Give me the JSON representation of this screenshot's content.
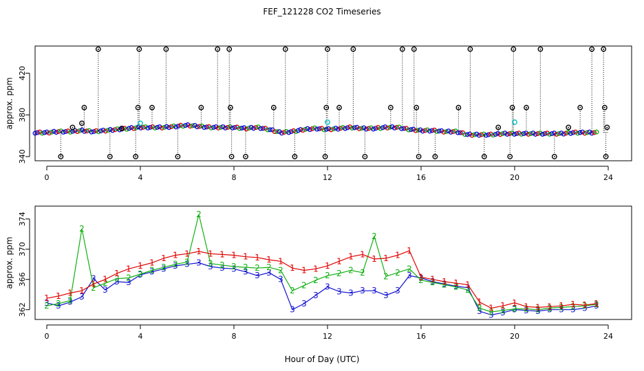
{
  "figure_title": "FEF_121228  CO2 Timeseries",
  "shared_xlabel": "Hour of Day (UTC)",
  "colors": {
    "black": "#000000",
    "red": "#e00000",
    "green": "#10b010",
    "blue": "#1010d0",
    "cyan": "#00c0c0"
  },
  "chart_data": [
    {
      "type": "scatter",
      "title": "",
      "xlabel": "",
      "ylabel": "approx. ppm",
      "xlim": [
        -0.5,
        25
      ],
      "ylim": [
        336,
        446
      ],
      "xticks": [
        0,
        4,
        8,
        12,
        16,
        20,
        24
      ],
      "yticks": [
        340,
        380,
        420
      ],
      "background_series": {
        "name": "all points",
        "x": [
          0,
          0.5,
          1,
          1.5,
          2,
          2.5,
          3,
          3.5,
          4,
          4.5,
          5,
          5.5,
          6,
          6.5,
          7,
          7.5,
          8,
          8.5,
          9,
          9.5,
          10,
          10.5,
          11,
          11.5,
          12,
          12.5,
          13,
          13.5,
          14,
          14.5,
          15,
          15.5,
          16,
          16.5,
          17,
          17.5,
          18,
          18.5,
          19,
          19.5,
          20,
          20.5,
          21,
          21.5,
          22,
          22.5,
          23,
          23.5
        ],
        "y": [
          363,
          363,
          364,
          364,
          365,
          364,
          365,
          366,
          367,
          368,
          368,
          368,
          369,
          370,
          369,
          368,
          368,
          368,
          367,
          368,
          366,
          363,
          364,
          366,
          367,
          366,
          367,
          368,
          367,
          367,
          368,
          368,
          366,
          365,
          365,
          364,
          364,
          361,
          361,
          361,
          362,
          362,
          362,
          362,
          362,
          362,
          363,
          363
        ]
      },
      "spikes": [
        {
          "x": 0.6,
          "y": 340
        },
        {
          "x": 1.1,
          "y": 368
        },
        {
          "x": 1.5,
          "y": 372
        },
        {
          "x": 1.6,
          "y": 387
        },
        {
          "x": 2.2,
          "y": 443
        },
        {
          "x": 2.7,
          "y": 340
        },
        {
          "x": 3.2,
          "y": 367
        },
        {
          "x": 3.8,
          "y": 340
        },
        {
          "x": 3.9,
          "y": 387
        },
        {
          "x": 3.95,
          "y": 443
        },
        {
          "x": 4.5,
          "y": 387
        },
        {
          "x": 5.1,
          "y": 443
        },
        {
          "x": 5.6,
          "y": 340
        },
        {
          "x": 6.6,
          "y": 387
        },
        {
          "x": 7.3,
          "y": 443
        },
        {
          "x": 7.8,
          "y": 443
        },
        {
          "x": 7.85,
          "y": 387
        },
        {
          "x": 7.9,
          "y": 340
        },
        {
          "x": 8.5,
          "y": 340
        },
        {
          "x": 9.7,
          "y": 387
        },
        {
          "x": 10.2,
          "y": 443
        },
        {
          "x": 10.6,
          "y": 340
        },
        {
          "x": 11.9,
          "y": 340
        },
        {
          "x": 11.95,
          "y": 387
        },
        {
          "x": 12.0,
          "y": 443
        },
        {
          "x": 12.5,
          "y": 387
        },
        {
          "x": 13.1,
          "y": 443
        },
        {
          "x": 13.6,
          "y": 340
        },
        {
          "x": 14.7,
          "y": 387
        },
        {
          "x": 15.2,
          "y": 443
        },
        {
          "x": 15.7,
          "y": 443
        },
        {
          "x": 15.8,
          "y": 387
        },
        {
          "x": 15.9,
          "y": 340
        },
        {
          "x": 16.6,
          "y": 340
        },
        {
          "x": 17.6,
          "y": 387
        },
        {
          "x": 18.1,
          "y": 443
        },
        {
          "x": 18.7,
          "y": 340
        },
        {
          "x": 19.3,
          "y": 368
        },
        {
          "x": 19.8,
          "y": 340
        },
        {
          "x": 19.9,
          "y": 387
        },
        {
          "x": 19.95,
          "y": 443
        },
        {
          "x": 20.5,
          "y": 387
        },
        {
          "x": 21.1,
          "y": 443
        },
        {
          "x": 21.7,
          "y": 340
        },
        {
          "x": 22.3,
          "y": 368
        },
        {
          "x": 22.8,
          "y": 387
        },
        {
          "x": 23.3,
          "y": 443
        },
        {
          "x": 23.8,
          "y": 443
        },
        {
          "x": 23.85,
          "y": 387
        },
        {
          "x": 23.9,
          "y": 340
        },
        {
          "x": 23.95,
          "y": 368
        }
      ],
      "cyan_markers": [
        {
          "x": 4.0,
          "y": 372
        },
        {
          "x": 12.0,
          "y": 373
        },
        {
          "x": 20.0,
          "y": 373
        }
      ]
    },
    {
      "type": "line",
      "title": "",
      "xlabel": "Hour of Day (UTC)",
      "ylabel": "approx. ppm",
      "xlim": [
        -0.5,
        25
      ],
      "ylim": [
        360.7,
        375.7
      ],
      "xticks": [
        0,
        4,
        8,
        12,
        16,
        20,
        24
      ],
      "yticks": [
        362,
        366,
        370,
        374
      ],
      "series": [
        {
          "name": "1",
          "color": "red",
          "x": [
            0,
            0.5,
            1,
            1.5,
            2,
            2.5,
            3,
            3.5,
            4,
            4.5,
            5,
            5.5,
            6,
            6.5,
            7,
            7.5,
            8,
            8.5,
            9,
            9.5,
            10,
            10.5,
            11,
            11.5,
            12,
            12.5,
            13,
            13.5,
            14,
            14.5,
            15,
            15.5,
            16,
            16.5,
            17,
            17.5,
            18,
            18.5,
            19,
            19.5,
            20,
            20.5,
            21,
            21.5,
            22,
            22.5,
            23,
            23.5
          ],
          "y": [
            363.5,
            363.8,
            364.2,
            364.5,
            365.4,
            366,
            366.8,
            367.4,
            367.8,
            368.2,
            368.8,
            369.2,
            369.4,
            369.7,
            369.4,
            369.3,
            369.2,
            369,
            368.9,
            368.6,
            368.4,
            367.5,
            367.2,
            367.4,
            367.8,
            368.4,
            369,
            369.3,
            368.7,
            368.8,
            369.2,
            369.8,
            366.3,
            366,
            365.7,
            365.5,
            365.3,
            363,
            362.2,
            362.5,
            362.9,
            362.4,
            362.3,
            362.4,
            362.5,
            362.7,
            362.6,
            362.8
          ]
        },
        {
          "name": "2",
          "color": "green",
          "x": [
            0,
            0.5,
            1,
            1.5,
            2,
            2.5,
            3,
            3.5,
            4,
            4.5,
            5,
            5.5,
            6,
            6.5,
            7,
            7.5,
            8,
            8.5,
            9,
            9.5,
            10,
            10.5,
            11,
            11.5,
            12,
            12.5,
            13,
            13.5,
            14,
            14.5,
            15,
            15.5,
            16,
            16.5,
            17,
            17.5,
            18,
            18.5,
            19,
            19.5,
            20,
            20.5,
            21,
            21.5,
            22,
            22.5,
            23,
            23.5
          ],
          "y": [
            362.5,
            362.8,
            363.2,
            372.7,
            364.9,
            365.5,
            366.1,
            366.2,
            366.7,
            367.2,
            367.6,
            368,
            368.3,
            374.6,
            368.1,
            367.9,
            367.7,
            367.6,
            367.5,
            367.6,
            367.2,
            364.5,
            365.2,
            365.9,
            366.5,
            366.8,
            367.2,
            366.9,
            371.7,
            366.4,
            366.9,
            367.4,
            365.9,
            365.6,
            365.3,
            365,
            364.6,
            362.2,
            361.7,
            361.9,
            362.1,
            362.1,
            362,
            362.2,
            362.3,
            362.4,
            362.5,
            362.7
          ]
        },
        {
          "name": "3",
          "color": "blue",
          "x": [
            0,
            0.5,
            1,
            1.5,
            2,
            2.5,
            3,
            3.5,
            4,
            4.5,
            5,
            5.5,
            6,
            6.5,
            7,
            7.5,
            8,
            8.5,
            9,
            9.5,
            10,
            10.5,
            11,
            11.5,
            12,
            12.5,
            13,
            13.5,
            14,
            14.5,
            15,
            15.5,
            16,
            16.5,
            17,
            17.5,
            18,
            18.5,
            19,
            19.5,
            20,
            20.5,
            21,
            21.5,
            22,
            22.5,
            23,
            23.5
          ],
          "y": [
            362.9,
            362.5,
            363,
            363.7,
            366.1,
            364.6,
            365.7,
            365.6,
            366.6,
            367,
            367.4,
            367.8,
            368,
            368.2,
            367.7,
            367.5,
            367.4,
            367,
            366.5,
            366.9,
            366,
            362,
            362.8,
            363.9,
            365,
            364.4,
            364.2,
            364.5,
            364.5,
            363.9,
            364.5,
            366.5,
            366.2,
            365.7,
            365.4,
            365.1,
            364.9,
            361.8,
            361.3,
            361.6,
            362,
            361.9,
            361.8,
            362,
            362,
            362,
            362.2,
            362.5
          ]
        }
      ]
    }
  ]
}
